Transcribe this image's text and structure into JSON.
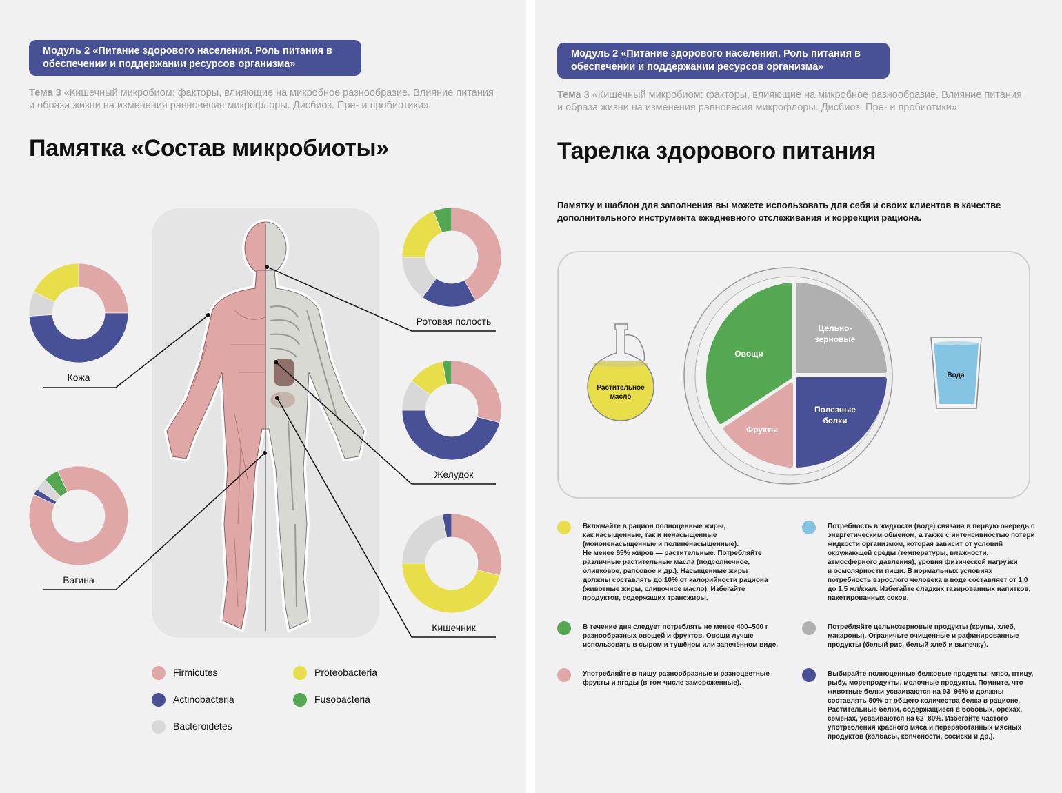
{
  "colors": {
    "firmicutes": "#dfa8a7",
    "actinobacteria": "#485196",
    "bacteroidetes": "#d8d8d8",
    "proteobacteria": "#e8de4a",
    "fusobacteria": "#54a852",
    "water": "#85c3e3",
    "whole_grain": "#b0b0b0",
    "badge": "#485196"
  },
  "left_page": {
    "module_badge": "Модуль 2 «Питание здорового населения. Роль питания в обеспечении и поддержании ресурсов организма»",
    "tema_label": "Тема 3",
    "tema_text": " «Кишечный микробиом: факторы, влияющие на микробное разнообразие. Влияние питания и образа жизни на изменения равновесия микрофлоры. Дисбиоз. Пре- и пробиотики»",
    "title": "Памятка «Состав микробиоты»",
    "legend": [
      {
        "name": "Firmicutes",
        "color": "#dfa8a7"
      },
      {
        "name": "Proteobacteria",
        "color": "#e8de4a"
      },
      {
        "name": "Actinobacteria",
        "color": "#485196"
      },
      {
        "name": "Fusobacteria",
        "color": "#54a852"
      },
      {
        "name": "Bacteroidetes",
        "color": "#d8d8d8"
      }
    ]
  },
  "chart_data": [
    {
      "type": "pie",
      "label": "Кожа",
      "segments": [
        {
          "category": "Firmicutes",
          "value": 25
        },
        {
          "category": "Actinobacteria",
          "value": 49
        },
        {
          "category": "Bacteroidetes",
          "value": 8
        },
        {
          "category": "Proteobacteria",
          "value": 18
        }
      ]
    },
    {
      "type": "pie",
      "label": "Вагина",
      "segments": [
        {
          "category": "Firmicutes",
          "value": 89
        },
        {
          "category": "Actinobacteria",
          "value": 2
        },
        {
          "category": "Bacteroidetes",
          "value": 4
        },
        {
          "category": "Fusobacteria",
          "value": 5
        }
      ]
    },
    {
      "type": "pie",
      "label": "Ротовая полость",
      "segments": [
        {
          "category": "Firmicutes",
          "value": 42
        },
        {
          "category": "Actinobacteria",
          "value": 18
        },
        {
          "category": "Bacteroidetes",
          "value": 15
        },
        {
          "category": "Proteobacteria",
          "value": 19
        },
        {
          "category": "Fusobacteria",
          "value": 6
        }
      ]
    },
    {
      "type": "pie",
      "label": "Желудок",
      "segments": [
        {
          "category": "Firmicutes",
          "value": 29
        },
        {
          "category": "Actinobacteria",
          "value": 46
        },
        {
          "category": "Bacteroidetes",
          "value": 10
        },
        {
          "category": "Proteobacteria",
          "value": 12
        },
        {
          "category": "Fusobacteria",
          "value": 3
        }
      ]
    },
    {
      "type": "pie",
      "label": "Кишечник",
      "segments": [
        {
          "category": "Firmicutes",
          "value": 29
        },
        {
          "category": "Proteobacteria",
          "value": 46
        },
        {
          "category": "Bacteroidetes",
          "value": 22
        },
        {
          "category": "Actinobacteria",
          "value": 3
        }
      ]
    }
  ],
  "right_page": {
    "module_badge": "Модуль 2 «Питание здорового населения. Роль питания в обеспечении и поддержании ресурсов организма»",
    "tema_label": "Тема 3",
    "tema_text": " «Кишечный микробиом: факторы, влияющие на микробное разнообразие. Влияние питания и образа жизни на изменения равновесия микрофлоры. Дисбиоз. Пре- и пробиотики»",
    "title": "Тарелка здорового питания",
    "intro": "Памятку и шаблон для заполнения вы можете использовать для себя и своих клиентов в качестве дополнительного инструмента ежедневного отслеживания и коррекции рациона.",
    "plate": {
      "vegetables": "Овощи",
      "grains_1": "Цельно-",
      "grains_2": "зерновые",
      "fruits": "Фрукты",
      "proteins_1": "Полезные",
      "proteins_2": "белки",
      "oil_1": "Растительное",
      "oil_2": "масло",
      "water": "Вода"
    },
    "bullets": [
      {
        "color": "#e8de4a",
        "text": "Включайте в рацион полноценные жиры,\nкак насыщенные, так и ненасыщенные\n(мононенасыщенные и полиненасыщенные).\nНе менее 65% жиров — растительные. Потребляйте\nразличные растительные масла (подсолнечное,\nоливковое, рапсовое и др.). Насыщенные жиры\nдолжны составлять до 10% от калорийности рациона\n(животные жиры, сливочное масло). Избегайте\nпродуктов, содержащих трансжиры."
      },
      {
        "color": "#85c3e3",
        "text": "Потребность в жидкости (воде) связана в первую очередь с\nэнергетическим обменом, а также с интенсивностью потери\nжидкости организмом, которая зависит от условий\nокружающей среды (температуры, влажности,\nатмосферного давления), уровня физической нагрузки\nи осмолярности пищи. В нормальных условиях\nпотребность взрослого человека в воде составляет от 1,0\nдо 1,5 мл/ккал. Избегайте сладких газированных напитков,\nпакетированных соков."
      },
      {
        "color": "#54a852",
        "text": "В течение дня следует потреблять не менее 400–500 г\nразнообразных овощей и фруктов. Овощи лучше\nиспользовать в сыром и тушёном или запечённом виде."
      },
      {
        "color": "#b0b0b0",
        "text": "Потребляйте цельнозерновые продукты (крупы, хлеб,\nмакароны). Ограничьте очищенные и рафинированные\nпродукты (белый рис, белый хлеб и выпечку)."
      },
      {
        "color": "#dfa8a7",
        "text": "Употребляйте в пищу разнообразные и разноцветные\nфрукты и ягоды (в том числе замороженные)."
      },
      {
        "color": "#485196",
        "text": "Выбирайте полноценные белковые продукты: мясо, птицу,\nрыбу, морепродукты, молочные продукты. Помните, что\nживотные белки усваиваются на 93–96% и должны\nсоставлять 50% от общего количества белка в рационе.\nРастительные белки, содержащиеся в бобовых, орехах,\nсеменах, усваиваются на 62–80%. Избегайте частого\nупотребления красного мяса и переработанных мясных\nпродуктов (колбасы, копчёности, сосиски и др.)."
      }
    ]
  }
}
